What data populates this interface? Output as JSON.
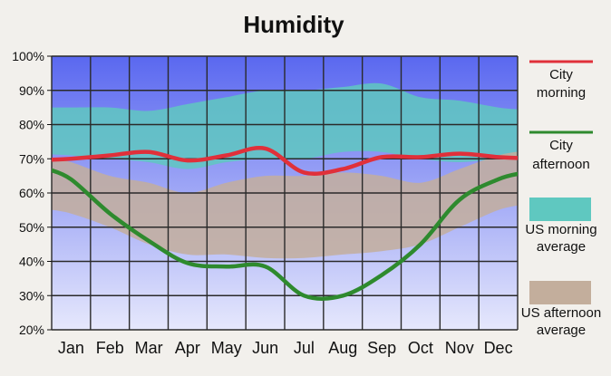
{
  "chart_data": {
    "type": "area",
    "title": "Humidity",
    "xlabel": "",
    "ylabel": "",
    "categories": [
      "Jan",
      "Feb",
      "Mar",
      "Apr",
      "May",
      "Jun",
      "Jul",
      "Aug",
      "Sep",
      "Oct",
      "Nov",
      "Dec"
    ],
    "yticks": [
      "20%",
      "30%",
      "40%",
      "50%",
      "60%",
      "70%",
      "80%",
      "90%",
      "100%"
    ],
    "ylim": [
      20,
      100
    ],
    "grid": true,
    "legend_position": "right",
    "series": [
      {
        "name": "City morning",
        "kind": "line",
        "color": "#e0303a",
        "values": [
          70,
          71,
          72,
          69.5,
          71,
          73,
          66,
          67,
          70.5,
          70.5,
          71.5,
          70.5
        ]
      },
      {
        "name": "City afternoon",
        "kind": "line",
        "color": "#2e8a2e",
        "values": [
          64,
          54,
          46,
          39.5,
          38.5,
          38.5,
          30,
          30,
          36,
          45,
          58,
          64
        ]
      },
      {
        "name": "US morning average",
        "kind": "band",
        "color": "#5fc8c0",
        "low": [
          71,
          70,
          69,
          67,
          69,
          70,
          70,
          72,
          72,
          70,
          69,
          70
        ],
        "high": [
          85,
          85,
          84,
          86,
          88,
          90,
          90,
          91,
          92,
          88,
          87,
          85
        ]
      },
      {
        "name": "US afternoon average",
        "kind": "band",
        "color": "#c3ae9c",
        "low": [
          54,
          50,
          45,
          42,
          42,
          41,
          41,
          42,
          43,
          45,
          50,
          55
        ],
        "high": [
          69,
          65,
          63,
          60,
          63,
          65,
          65,
          66,
          65,
          63,
          67,
          71
        ]
      }
    ],
    "legend": [
      {
        "label_lines": [
          "City",
          "morning"
        ],
        "symbol": "line",
        "color": "#e0303a"
      },
      {
        "label_lines": [
          "City",
          "afternoon"
        ],
        "symbol": "line",
        "color": "#2e8a2e"
      },
      {
        "label_lines": [
          "US morning",
          "average"
        ],
        "symbol": "box",
        "color": "#5fc8c0"
      },
      {
        "label_lines": [
          "US afternoon",
          "average"
        ],
        "symbol": "box",
        "color": "#c3ae9c"
      }
    ],
    "colors": {
      "background": "#f2f0ec",
      "plot_gradient_top": "#5a68f0",
      "plot_gradient_bottom": "#e6e8fc",
      "grid": "#2a2a2a"
    }
  }
}
